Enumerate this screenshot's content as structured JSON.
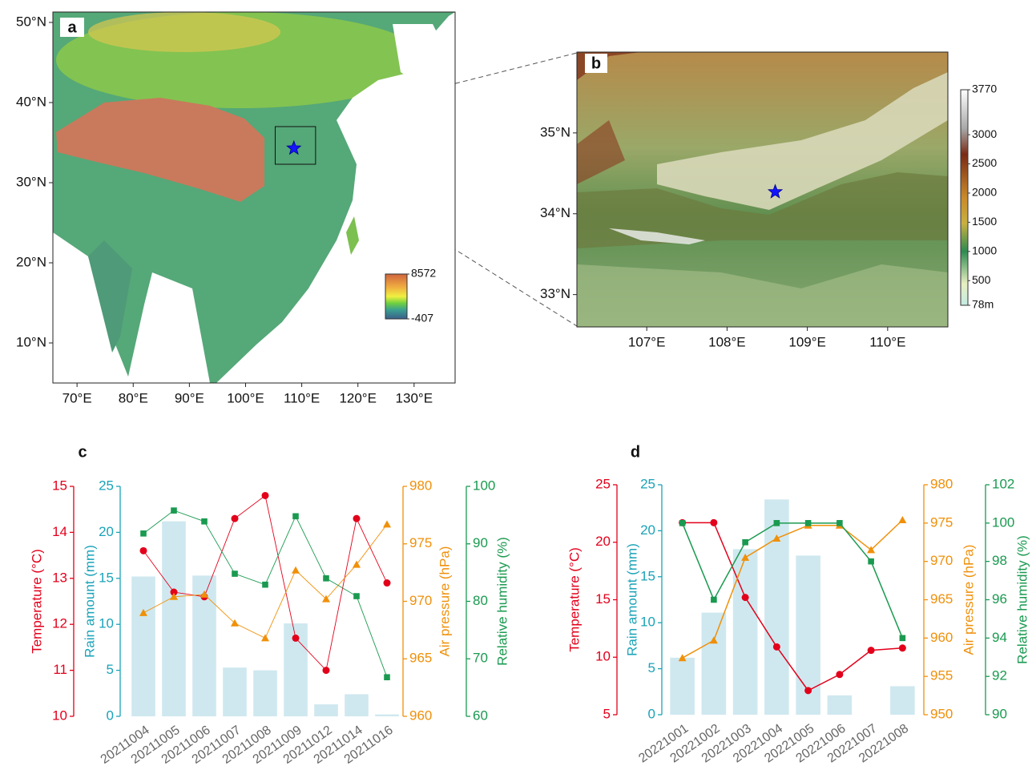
{
  "chart_data": [
    {
      "type": "map",
      "label": "a",
      "xlim": [
        65.7,
        137.3
      ],
      "ylim": [
        5,
        51.3
      ],
      "xticks": [
        {
          "value": 70,
          "label": "70°E"
        },
        {
          "value": 80,
          "label": "80°E"
        },
        {
          "value": 90,
          "label": "90°E"
        },
        {
          "value": 100,
          "label": "100°E"
        },
        {
          "value": 110,
          "label": "110°E"
        },
        {
          "value": 120,
          "label": "120°E"
        },
        {
          "value": 130,
          "label": "130°E"
        }
      ],
      "yticks": [
        {
          "value": 10,
          "label": "10°N"
        },
        {
          "value": 20,
          "label": "20°N"
        },
        {
          "value": 30,
          "label": "30°N"
        },
        {
          "value": 40,
          "label": "40°N"
        },
        {
          "value": 50,
          "label": "50°N"
        }
      ],
      "colorbar_lim": [
        -407,
        8572
      ],
      "colorbar_ticks": [
        8572,
        -407
      ],
      "star": {
        "x": 108.6,
        "y": 34.3
      }
    },
    {
      "type": "map",
      "label": "b",
      "xlim": [
        106.13,
        110.75
      ],
      "ylim": [
        32.6,
        36.0
      ],
      "xticks": [
        {
          "value": 107,
          "label": "107°E"
        },
        {
          "value": 108,
          "label": "108°E"
        },
        {
          "value": 109,
          "label": "109°E"
        },
        {
          "value": 110,
          "label": "110°E"
        }
      ],
      "yticks": [
        {
          "value": 33,
          "label": "33°N"
        },
        {
          "value": 34,
          "label": "34°N"
        },
        {
          "value": 35,
          "label": "35°N"
        }
      ],
      "colorbar_lim": [
        78,
        3770
      ],
      "colorbar_ticks": [
        3770,
        3000,
        2500,
        2000,
        1500,
        1000,
        500,
        {
          "value": 78,
          "label": "78m"
        }
      ],
      "star": {
        "x": 108.6,
        "y": 34.27
      }
    },
    {
      "type": "combo",
      "label": "c",
      "categories": [
        "20211004",
        "20211005",
        "20211006",
        "20211007",
        "20211008",
        "20211009",
        "20211012",
        "20211014",
        "20211016"
      ],
      "ylabel": "Temperature (°C)",
      "ylim": [
        10,
        15
      ],
      "yticks": [
        10,
        11,
        12,
        13,
        14,
        15
      ],
      "y2label": "Rain amount (mm)",
      "y2lim": [
        0,
        25
      ],
      "y2ticks": [
        0,
        5,
        10,
        15,
        20,
        25
      ],
      "y3label": "Air pressure (hPa)",
      "y3lim": [
        960,
        980
      ],
      "y3ticks": [
        960,
        965,
        970,
        975,
        980
      ],
      "y4label": "Relative humidity (%)",
      "y4lim": [
        60,
        100
      ],
      "y4ticks": [
        60,
        70,
        80,
        90,
        100
      ],
      "axis_colors": {
        "y": "#e3001b",
        "y2": "#1aa3b8",
        "y3": "#f0900a",
        "y4": "#1a9a50"
      },
      "series": [
        {
          "axis": "y2",
          "kind": "bar",
          "color": "#cfe8ef",
          "values": [
            15.2,
            21.2,
            15.3,
            5.3,
            5.0,
            10.1,
            1.3,
            2.4,
            0.2
          ]
        },
        {
          "axis": "y",
          "kind": "line",
          "marker": "circle",
          "color": "#e3001b",
          "values": [
            13.6,
            12.7,
            12.6,
            14.3,
            14.8,
            11.7,
            11.0,
            14.3,
            12.9
          ]
        },
        {
          "axis": "y3",
          "kind": "line",
          "marker": "triangle",
          "color": "#f0900a",
          "values": [
            969.0,
            970.4,
            970.6,
            968.1,
            966.8,
            972.7,
            970.2,
            973.2,
            976.7
          ]
        },
        {
          "axis": "y4",
          "kind": "line",
          "marker": "square",
          "color": "#1a9a50",
          "values": [
            91.8,
            95.8,
            93.9,
            84.8,
            82.9,
            94.8,
            84.0,
            80.9,
            66.8
          ]
        }
      ]
    },
    {
      "type": "combo",
      "label": "d",
      "categories": [
        "20221001",
        "20221002",
        "20221003",
        "20221004",
        "20221005",
        "20221006",
        "20221007",
        "20221008"
      ],
      "ylabel": "Temperature (°C)",
      "ylim": [
        5,
        25
      ],
      "yticks": [
        5,
        10,
        15,
        20,
        25
      ],
      "y2label": "Rain amount (mm)",
      "y2lim": [
        0,
        25
      ],
      "y2ticks": [
        0,
        5,
        10,
        15,
        20,
        25
      ],
      "y3label": "Air pressure (hPa)",
      "y3lim": [
        950,
        980
      ],
      "y3ticks": [
        950,
        955,
        960,
        965,
        970,
        975,
        980
      ],
      "y4label": "Relative humidity (%)",
      "y4lim": [
        90,
        102
      ],
      "y4ticks": [
        90,
        92,
        94,
        96,
        98,
        100,
        102
      ],
      "axis_colors": {
        "y": "#e3001b",
        "y2": "#1aa3b8",
        "y3": "#f0900a",
        "y4": "#1a9a50"
      },
      "series": [
        {
          "axis": "y2",
          "kind": "bar",
          "color": "#cfe8ef",
          "values": [
            6.2,
            11.1,
            18.0,
            23.4,
            17.3,
            2.1,
            0,
            3.1
          ]
        },
        {
          "axis": "y",
          "kind": "line",
          "marker": "circle",
          "color": "#e3001b",
          "values": [
            21.7,
            21.7,
            15.2,
            10.9,
            7.1,
            8.5,
            10.6,
            10.8
          ]
        },
        {
          "axis": "y3",
          "kind": "line",
          "marker": "triangle",
          "color": "#f0900a",
          "values": [
            957.4,
            959.7,
            970.5,
            973.0,
            974.7,
            974.7,
            971.5,
            975.4
          ]
        },
        {
          "axis": "y4",
          "kind": "line",
          "marker": "square",
          "color": "#1a9a50",
          "values": [
            100,
            96,
            99,
            100,
            100,
            100,
            98,
            94
          ]
        }
      ]
    }
  ]
}
